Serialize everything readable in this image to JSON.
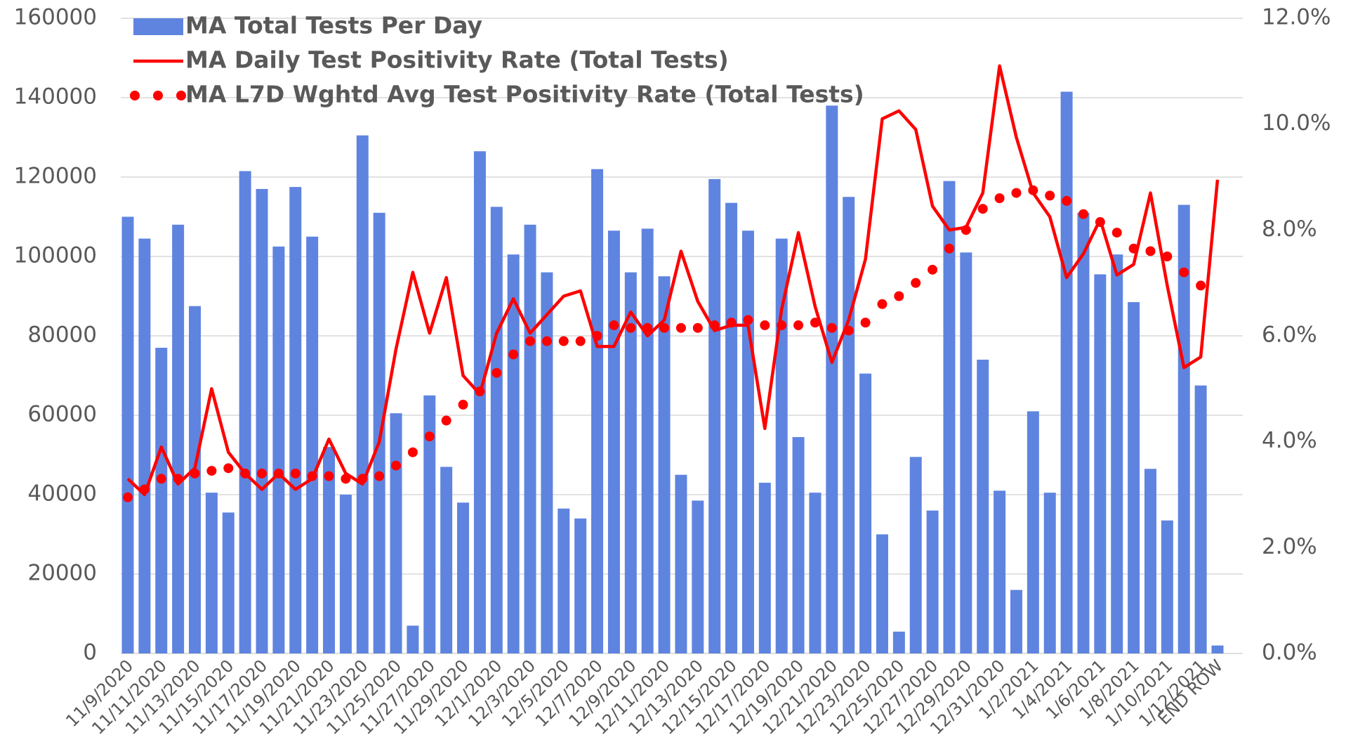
{
  "chart_data": {
    "type": "bar",
    "categories": [
      "11/9/2020",
      null,
      "11/11/2020",
      null,
      "11/13/2020",
      null,
      "11/15/2020",
      null,
      "11/17/2020",
      null,
      "11/19/2020",
      null,
      "11/21/2020",
      null,
      "11/23/2020",
      null,
      "11/25/2020",
      null,
      "11/27/2020",
      null,
      "11/29/2020",
      null,
      "12/1/2020",
      null,
      "12/3/2020",
      null,
      "12/5/2020",
      null,
      "12/7/2020",
      null,
      "12/9/2020",
      null,
      "12/11/2020",
      null,
      "12/13/2020",
      null,
      "12/15/2020",
      null,
      "12/17/2020",
      null,
      "12/19/2020",
      null,
      "12/21/2020",
      null,
      "12/23/2020",
      null,
      "12/25/2020",
      null,
      "12/27/2020",
      null,
      "12/29/2020",
      null,
      "12/31/2020",
      null,
      "1/2/2021",
      null,
      "1/4/2021",
      null,
      "1/6/2021",
      null,
      "1/8/2021",
      null,
      "1/10/2021",
      null,
      "1/12/2021",
      "END ROW"
    ],
    "series": [
      {
        "name": "MA Total Tests Per Day",
        "type": "bar",
        "axis": "y",
        "color": "#5f84e0",
        "values": [
          110000,
          104500,
          77000,
          108000,
          87500,
          40500,
          35500,
          121500,
          117000,
          102500,
          117500,
          105000,
          52000,
          40000,
          130500,
          111000,
          60500,
          7000,
          65000,
          47000,
          38000,
          126500,
          112500,
          100500,
          108000,
          96000,
          36500,
          34000,
          122000,
          106500,
          96000,
          107000,
          95000,
          45000,
          38500,
          119500,
          113500,
          106500,
          43000,
          104500,
          54500,
          40500,
          138000,
          115000,
          70500,
          30000,
          5500,
          49500,
          36000,
          119000,
          101000,
          74000,
          41000,
          16000,
          61000,
          40500,
          141500,
          111000,
          95500,
          100500,
          88500,
          46500,
          33500,
          113000,
          67500,
          2000
        ]
      },
      {
        "name": "MA Daily Test Positivity Rate (Total Tests)",
        "type": "line",
        "axis": "y2",
        "color": "#ff0000",
        "linestyle": "solid",
        "values": [
          3.3,
          3.0,
          3.9,
          3.2,
          3.5,
          5.0,
          3.8,
          3.4,
          3.1,
          3.4,
          3.1,
          3.3,
          4.05,
          3.4,
          3.2,
          4.0,
          5.75,
          7.2,
          6.05,
          7.1,
          5.25,
          4.9,
          6.05,
          6.7,
          6.05,
          6.4,
          6.75,
          6.85,
          5.8,
          5.8,
          6.45,
          6.0,
          6.3,
          7.6,
          6.65,
          6.1,
          6.2,
          6.2,
          4.25,
          6.5,
          7.95,
          6.55,
          5.5,
          6.3,
          7.45,
          10.1,
          10.25,
          9.9,
          8.45,
          8.0,
          8.05,
          8.7,
          11.1,
          9.75,
          8.7,
          8.25,
          7.1,
          7.55,
          8.2,
          7.15,
          7.35,
          8.7,
          6.95,
          5.4,
          5.6,
          8.95
        ]
      },
      {
        "name": "MA L7D Wghtd Avg Test Positivity Rate (Total Tests)",
        "type": "line",
        "axis": "y2",
        "color": "#ff0000",
        "linestyle": "dotted",
        "values": [
          2.95,
          3.1,
          3.3,
          3.3,
          3.4,
          3.45,
          3.5,
          3.4,
          3.4,
          3.4,
          3.4,
          3.35,
          3.35,
          3.3,
          3.3,
          3.35,
          3.55,
          3.8,
          4.1,
          4.4,
          4.7,
          4.95,
          5.3,
          5.65,
          5.9,
          5.9,
          5.9,
          5.9,
          6.0,
          6.2,
          6.15,
          6.15,
          6.15,
          6.15,
          6.15,
          6.2,
          6.25,
          6.3,
          6.2,
          6.2,
          6.2,
          6.25,
          6.15,
          6.1,
          6.25,
          6.6,
          6.75,
          7.0,
          7.25,
          7.65,
          8.0,
          8.4,
          8.6,
          8.7,
          8.75,
          8.65,
          8.55,
          8.3,
          8.15,
          7.95,
          7.65,
          7.6,
          7.5,
          7.2,
          6.95,
          null
        ]
      }
    ],
    "ylim": [
      0,
      160000
    ],
    "yticks": [
      0,
      20000,
      40000,
      60000,
      80000,
      100000,
      120000,
      140000,
      160000
    ],
    "y2lim": [
      0,
      12
    ],
    "y2ticks": [
      {
        "value": 0,
        "label": "0.0%"
      },
      {
        "value": 2,
        "label": "2.0%"
      },
      {
        "value": 4,
        "label": "4.0%"
      },
      {
        "value": 6,
        "label": "6.0%"
      },
      {
        "value": 8,
        "label": "8.0%"
      },
      {
        "value": 10,
        "label": "10.0%"
      },
      {
        "value": 12,
        "label": "12.0%"
      }
    ],
    "grid": true,
    "legend": "top-left"
  }
}
